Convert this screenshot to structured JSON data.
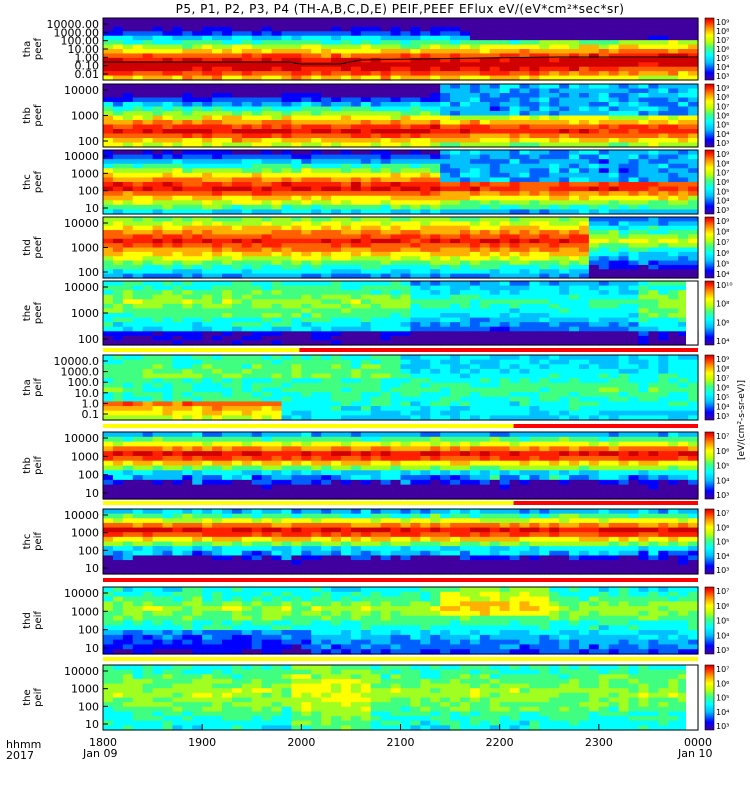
{
  "title": "P5, P1, P2, P3, P4 (TH-A,B,C,D,E) PEIF,PEEF EFlux eV/(eV*cm²*sec*sr)",
  "x_axis": {
    "label_lines": [
      "hhmm",
      "2017"
    ],
    "ticks": [
      "1800",
      "1900",
      "2000",
      "2100",
      "2200",
      "2300",
      "0000"
    ],
    "date_labels": [
      "Jan 09",
      "Jan 10"
    ]
  },
  "colorbar_unit": "[eV/(cm²-s-sr-eV)]",
  "colors": {
    "spectrogram_palette": [
      "#000080",
      "#0000ff",
      "#00c0ff",
      "#00ffff",
      "#40ff80",
      "#c0ff00",
      "#ffff00",
      "#ff9000",
      "#ff2000",
      "#d00000"
    ],
    "flag_red": "#ff0000",
    "flag_yellow": "#ffff00",
    "sc_potential_line": "#000000"
  },
  "chart_data": [
    {
      "type": "heatmap",
      "name": "tha peef",
      "ylabel": [
        "tha",
        "peef"
      ],
      "ytick_labels": [
        "10000.00",
        "1000.00",
        "100.00",
        "10.00",
        "1.00",
        "0.10",
        "0.01"
      ],
      "colorbar_ticks": [
        "10⁹",
        "10⁸",
        "10⁷",
        "10⁶",
        "10⁵",
        "10⁴",
        "10³"
      ],
      "colorbar_range_log10": [
        3,
        9
      ],
      "xlim": [
        "1800",
        "0000"
      ],
      "y_scale": "log"
    },
    {
      "type": "heatmap",
      "name": "thb peef",
      "ylabel": [
        "thb",
        "peef"
      ],
      "ytick_labels": [
        "10000",
        "1000",
        "100"
      ],
      "colorbar_ticks": [
        "10⁹",
        "10⁸",
        "10⁷",
        "10⁶",
        "10⁵",
        "10⁴",
        "10³"
      ],
      "colorbar_range_log10": [
        3,
        9
      ],
      "xlim": [
        "1800",
        "0000"
      ],
      "y_scale": "log"
    },
    {
      "type": "heatmap",
      "name": "thc peef",
      "ylabel": [
        "thc",
        "peef"
      ],
      "ytick_labels": [
        "10000",
        "1000",
        "100",
        "10"
      ],
      "colorbar_ticks": [
        "10⁹",
        "10⁸",
        "10⁷",
        "10⁶",
        "10⁵",
        "10⁴",
        "10³"
      ],
      "colorbar_range_log10": [
        3,
        9
      ],
      "xlim": [
        "1800",
        "0000"
      ],
      "y_scale": "log"
    },
    {
      "type": "heatmap",
      "name": "thd peef",
      "ylabel": [
        "thd",
        "peef"
      ],
      "ytick_labels": [
        "10000",
        "1000",
        "100"
      ],
      "colorbar_ticks": [
        "10⁹",
        "10⁸",
        "10⁷",
        "10⁶",
        "10⁵",
        "10⁴"
      ],
      "colorbar_range_log10": [
        4,
        9
      ],
      "xlim": [
        "1800",
        "0000"
      ],
      "y_scale": "log"
    },
    {
      "type": "heatmap",
      "name": "the peef",
      "ylabel": [
        "the",
        "peef"
      ],
      "ytick_labels": [
        "10000",
        "1000",
        "100"
      ],
      "colorbar_ticks": [
        "10¹⁰",
        "10⁸",
        "10⁶",
        "10⁴"
      ],
      "colorbar_range_log10": [
        4,
        10
      ],
      "xlim": [
        "1800",
        "0000"
      ],
      "y_scale": "log"
    },
    {
      "type": "heatmap",
      "name": "tha peif",
      "ylabel": [
        "tha",
        "peif"
      ],
      "ytick_labels": [
        "10000.0",
        "1000.0",
        "100.0",
        "10.0",
        "1.0",
        "0.1"
      ],
      "colorbar_ticks": [
        "10⁹",
        "10⁸",
        "10⁷",
        "10⁶",
        "10⁵",
        "10⁴",
        "10³"
      ],
      "colorbar_range_log10": [
        3,
        9
      ],
      "xlim": [
        "1800",
        "0000"
      ],
      "y_scale": "log"
    },
    {
      "type": "heatmap",
      "name": "thb peif",
      "ylabel": [
        "thb",
        "peif"
      ],
      "ytick_labels": [
        "10000",
        "1000",
        "100",
        "10"
      ],
      "colorbar_ticks": [
        "10⁷",
        "10⁶",
        "10⁵",
        "10⁴",
        "10³"
      ],
      "colorbar_range_log10": [
        3,
        7
      ],
      "xlim": [
        "1800",
        "0000"
      ],
      "y_scale": "log"
    },
    {
      "type": "heatmap",
      "name": "thc peif",
      "ylabel": [
        "thc",
        "peif"
      ],
      "ytick_labels": [
        "10000",
        "1000",
        "100",
        "10"
      ],
      "colorbar_ticks": [
        "10⁷",
        "10⁶",
        "10⁵",
        "10⁴",
        "10³"
      ],
      "colorbar_range_log10": [
        3,
        7
      ],
      "xlim": [
        "1800",
        "0000"
      ],
      "y_scale": "log"
    },
    {
      "type": "heatmap",
      "name": "thd peif",
      "ylabel": [
        "thd",
        "peif"
      ],
      "ytick_labels": [
        "10000",
        "1000",
        "100",
        "10"
      ],
      "colorbar_ticks": [
        "10⁷",
        "10⁶",
        "10⁵",
        "10⁴",
        "10³"
      ],
      "colorbar_range_log10": [
        3,
        7
      ],
      "xlim": [
        "1800",
        "0000"
      ],
      "y_scale": "log"
    },
    {
      "type": "heatmap",
      "name": "the peif",
      "ylabel": [
        "the",
        "peif"
      ],
      "ytick_labels": [
        "10000",
        "1000",
        "100",
        "10"
      ],
      "colorbar_ticks": [
        "10⁷",
        "10⁶",
        "10⁵",
        "10⁴",
        "10³"
      ],
      "colorbar_range_log10": [
        3,
        7
      ],
      "xlim": [
        "1800",
        "0000"
      ],
      "y_scale": "log"
    }
  ]
}
